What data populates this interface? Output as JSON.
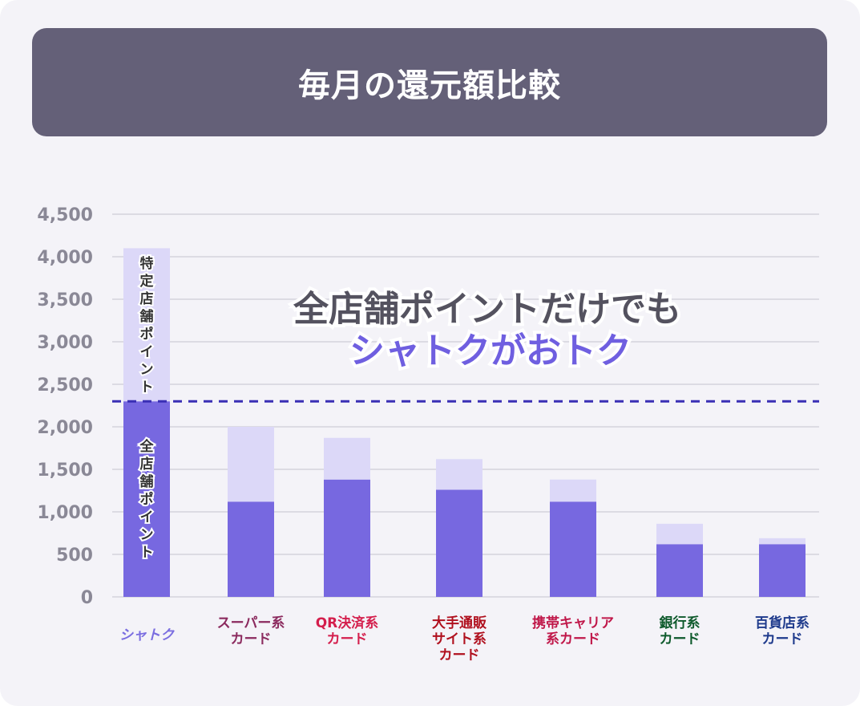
{
  "chart_data": {
    "type": "bar",
    "stacked": true,
    "title": "毎月の還元額比較",
    "categories": [
      {
        "lines": [
          "シャトク"
        ],
        "color": "#7a6de0",
        "logo": true
      },
      {
        "lines": [
          "スーパー系",
          "カード"
        ],
        "color": "#8b2a5e"
      },
      {
        "lines": [
          "QR決済系",
          "カード"
        ],
        "color": "#d41e4c"
      },
      {
        "lines": [
          "大手通販",
          "サイト系",
          "カード"
        ],
        "color": "#b0101e"
      },
      {
        "lines": [
          "携帯キャリア",
          "系カード"
        ],
        "color": "#c0184a"
      },
      {
        "lines": [
          "銀行系",
          "カード"
        ],
        "color": "#0e5a2c"
      },
      {
        "lines": [
          "百貨店系",
          "カード"
        ],
        "color": "#1e3a8c"
      }
    ],
    "series": [
      {
        "name": "全店舗ポイント",
        "color": "#7768e0",
        "values": [
          2300,
          1120,
          1380,
          1260,
          1120,
          620,
          620
        ]
      },
      {
        "name": "特定店舗ポイント",
        "color": "#dcd8f8",
        "values": [
          1800,
          880,
          490,
          360,
          260,
          240,
          70
        ]
      }
    ],
    "ylim": [
      0,
      4500
    ],
    "yticks": [
      "0",
      "500",
      "1,000",
      "1,500",
      "2,000",
      "2,500",
      "3,000",
      "3,500",
      "4,000",
      "4,500"
    ],
    "reference_line": {
      "value": 2300,
      "style": "dashed",
      "color": "#3a2fb5"
    },
    "annotation": {
      "line1": "全店舗ポイントだけでも",
      "line2": "シャトクがおトク"
    },
    "grid": true
  }
}
